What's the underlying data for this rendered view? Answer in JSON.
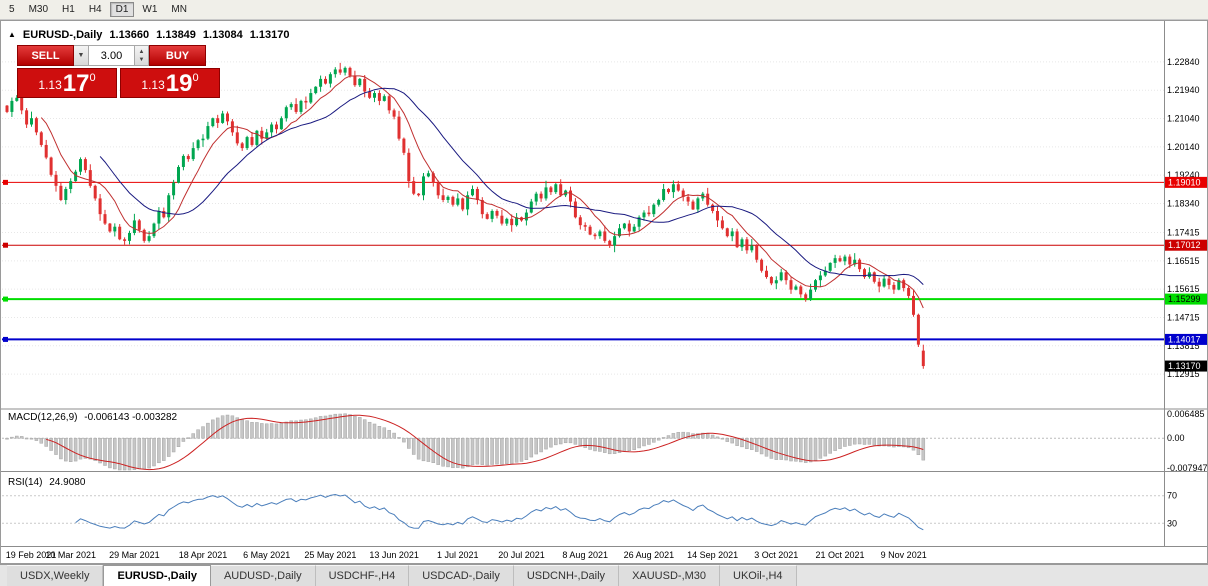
{
  "toolbar": {
    "timeframes": [
      "5",
      "M30",
      "H1",
      "H4",
      "D1",
      "W1",
      "MN"
    ],
    "active": "D1"
  },
  "chart_header": {
    "symbol": "EURUSD-,Daily",
    "open": "1.13660",
    "high": "1.13849",
    "low": "1.13084",
    "close": "1.13170"
  },
  "trade_panel": {
    "sell_label": "SELL",
    "buy_label": "BUY",
    "volume": "3.00",
    "sell_quote": {
      "prefix": "1.13",
      "big": "17",
      "sup": "0"
    },
    "buy_quote": {
      "prefix": "1.13",
      "big": "19",
      "sup": "0"
    }
  },
  "price_axis": {
    "labels": [
      "1.22840",
      "1.21940",
      "1.21040",
      "1.20140",
      "1.19240",
      "1.18340",
      "1.17415",
      "1.16515",
      "1.15615",
      "1.14715",
      "1.13815",
      "1.12915"
    ],
    "current": {
      "label": "1.13170",
      "value": 1.1317,
      "color": "#000000",
      "text_color": "#ffffff"
    }
  },
  "hlines": [
    {
      "label": "1.19010",
      "value": 1.1901,
      "color": "#e80000",
      "width": 1,
      "text_color": "#ffffff"
    },
    {
      "label": "1.17012",
      "value": 1.17012,
      "color": "#cc0000",
      "width": 1,
      "text_color": "#ffffff"
    },
    {
      "label": "1.15299",
      "value": 1.15299,
      "color": "#00dd00",
      "width": 2,
      "text_color": "#000000"
    },
    {
      "label": "1.14017",
      "value": 1.14017,
      "color": "#0000cc",
      "width": 2,
      "text_color": "#ffffff"
    }
  ],
  "chart_data": {
    "type": "candlestick",
    "symbol": "EURUSD",
    "timeframe": "Daily",
    "ylim": [
      1.119,
      1.2395
    ],
    "last_ohlc": [
      1.1366,
      1.13849,
      1.13084,
      1.1317
    ],
    "closes": [
      1.2125,
      1.216,
      1.217,
      1.213,
      1.2085,
      1.2105,
      1.206,
      1.202,
      1.198,
      1.1925,
      1.189,
      1.1845,
      1.188,
      1.1905,
      1.1935,
      1.1975,
      1.194,
      1.189,
      1.185,
      1.18,
      1.177,
      1.1745,
      1.176,
      1.172,
      1.1715,
      1.174,
      1.178,
      1.175,
      1.1715,
      1.173,
      1.177,
      1.181,
      1.179,
      1.186,
      1.19,
      1.195,
      1.1985,
      1.1975,
      1.201,
      1.2035,
      1.204,
      1.208,
      1.2105,
      1.209,
      1.212,
      1.2095,
      1.206,
      1.2025,
      1.201,
      1.2045,
      1.202,
      1.2065,
      1.204,
      1.206,
      1.2085,
      1.207,
      1.2105,
      1.214,
      1.215,
      1.2125,
      1.216,
      1.2155,
      1.2185,
      1.2205,
      1.223,
      1.2215,
      1.2245,
      1.226,
      1.225,
      1.2265,
      1.224,
      1.221,
      1.223,
      1.219,
      1.217,
      1.2185,
      1.216,
      1.2175,
      1.213,
      1.211,
      1.204,
      1.1995,
      1.1905,
      1.1865,
      1.186,
      1.192,
      1.193,
      1.19,
      1.186,
      1.1845,
      1.1855,
      1.183,
      1.185,
      1.1815,
      1.186,
      1.188,
      1.1845,
      1.18,
      1.1785,
      1.181,
      1.1795,
      1.177,
      1.1785,
      1.1765,
      1.179,
      1.178,
      1.1805,
      1.184,
      1.1865,
      1.185,
      1.1885,
      1.187,
      1.1895,
      1.186,
      1.1875,
      1.184,
      1.179,
      1.1765,
      1.176,
      1.1735,
      1.173,
      1.1745,
      1.1715,
      1.17,
      1.173,
      1.1755,
      1.177,
      1.1745,
      1.176,
      1.179,
      1.1805,
      1.18,
      1.183,
      1.1845,
      1.188,
      1.187,
      1.1895,
      1.1875,
      1.1855,
      1.184,
      1.1815,
      1.185,
      1.1865,
      1.183,
      1.181,
      1.178,
      1.1755,
      1.173,
      1.1745,
      1.1695,
      1.172,
      1.1685,
      1.17,
      1.1655,
      1.162,
      1.16,
      1.158,
      1.159,
      1.1615,
      1.159,
      1.156,
      1.157,
      1.1545,
      1.153,
      1.156,
      1.159,
      1.1605,
      1.162,
      1.1645,
      1.166,
      1.165,
      1.1665,
      1.164,
      1.1655,
      1.1625,
      1.16,
      1.1615,
      1.1585,
      1.157,
      1.1595,
      1.1575,
      1.156,
      1.159,
      1.1565,
      1.154,
      1.148,
      1.1385,
      1.1317
    ],
    "x_labels": [
      {
        "text": "19 Feb 2021",
        "i": 0
      },
      {
        "text": "10 Mar 2021",
        "i": 13
      },
      {
        "text": "29 Mar 2021",
        "i": 26
      },
      {
        "text": "18 Apr 2021",
        "i": 40
      },
      {
        "text": "6 May 2021",
        "i": 53
      },
      {
        "text": "25 May 2021",
        "i": 66
      },
      {
        "text": "13 Jun 2021",
        "i": 79
      },
      {
        "text": "1 Jul 2021",
        "i": 92
      },
      {
        "text": "20 Jul 2021",
        "i": 105
      },
      {
        "text": "8 Aug 2021",
        "i": 118
      },
      {
        "text": "26 Aug 2021",
        "i": 131
      },
      {
        "text": "14 Sep 2021",
        "i": 144
      },
      {
        "text": "3 Oct 2021",
        "i": 157
      },
      {
        "text": "21 Oct 2021",
        "i": 170
      },
      {
        "text": "9 Nov 2021",
        "i": 183
      }
    ],
    "indicators": {
      "macd": {
        "label": "MACD(12,26,9)",
        "values_text": "-0.006143 -0.003282",
        "ylim": [
          -0.0085,
          0.007
        ],
        "axis": [
          {
            "text": "0.006485",
            "value": 0.006485
          },
          {
            "text": "0.00",
            "value": 0
          },
          {
            "text": "-0.007947",
            "value": -0.007947
          }
        ]
      },
      "rsi": {
        "label": "RSI(14)",
        "value_text": "24.9080",
        "levels": [
          70,
          30
        ],
        "axis": [
          {
            "text": "70",
            "value": 70
          },
          {
            "text": "30",
            "value": 30
          }
        ]
      }
    },
    "colors": {
      "up": "#00a650",
      "down": "#e03030",
      "ma_fast": "#c03030",
      "ma_slow": "#1a1a80",
      "macd_bar": "#c6c6c6",
      "macd_bar_edge": "#a6a6a6",
      "macd_signal": "#cc2222",
      "rsi_line": "#4a7ebb",
      "grid": "#e7e7e7"
    }
  },
  "tabs": [
    {
      "label": "USDX,Weekly"
    },
    {
      "label": "EURUSD-,Daily"
    },
    {
      "label": "AUDUSD-,Daily"
    },
    {
      "label": "USDCHF-,H4"
    },
    {
      "label": "USDCAD-,Daily"
    },
    {
      "label": "USDCNH-,Daily"
    },
    {
      "label": "XAUUSD-,M30"
    },
    {
      "label": "UKOil-,H4"
    }
  ]
}
